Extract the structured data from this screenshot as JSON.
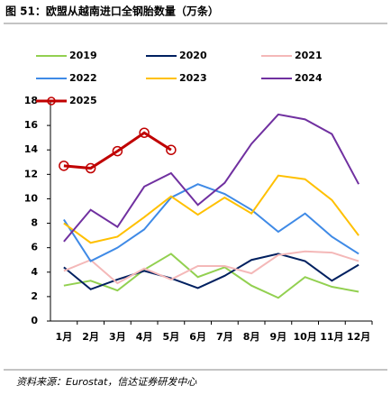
{
  "chart_data": {
    "type": "line",
    "title": "图 51：欧盟从越南进口全钢胎数量（万条）",
    "source": "资料来源：Eurostat，信达证券研发中心",
    "categories": [
      "1月",
      "2月",
      "3月",
      "4月",
      "5月",
      "6月",
      "7月",
      "8月",
      "9月",
      "10月",
      "11月",
      "12月"
    ],
    "ylim": [
      0,
      18
    ],
    "yticks": [
      0,
      2,
      4,
      6,
      8,
      10,
      12,
      14,
      16,
      18
    ],
    "legend": "top",
    "series": [
      {
        "name": "2019",
        "color": "#92d050",
        "values": [
          2.9,
          3.3,
          2.5,
          4.2,
          5.5,
          3.6,
          4.4,
          2.9,
          1.9,
          3.6,
          2.8,
          2.4
        ]
      },
      {
        "name": "2020",
        "color": "#002060",
        "values": [
          4.4,
          2.6,
          3.4,
          4.1,
          3.5,
          2.7,
          3.7,
          5.0,
          5.5,
          4.9,
          3.3,
          4.6
        ]
      },
      {
        "name": "2021",
        "color": "#f4b8b8",
        "values": [
          4.1,
          5.0,
          3.1,
          4.3,
          3.4,
          4.5,
          4.5,
          3.9,
          5.4,
          5.7,
          5.6,
          4.9
        ]
      },
      {
        "name": "2022",
        "color": "#3f8ae6",
        "values": [
          8.3,
          4.9,
          6.0,
          7.5,
          10.1,
          11.2,
          10.4,
          9.1,
          7.3,
          8.8,
          6.9,
          5.5
        ]
      },
      {
        "name": "2023",
        "color": "#ffc000",
        "values": [
          8.0,
          6.4,
          6.9,
          8.5,
          10.2,
          8.7,
          10.1,
          8.8,
          11.9,
          11.6,
          9.9,
          7.0
        ]
      },
      {
        "name": "2024",
        "color": "#7030a0",
        "values": [
          6.5,
          9.1,
          7.7,
          11.0,
          12.1,
          9.5,
          11.3,
          14.5,
          16.9,
          16.5,
          15.3,
          11.2
        ]
      },
      {
        "name": "2025",
        "color": "#c00000",
        "marker": "circle",
        "values": [
          12.7,
          12.5,
          13.9,
          15.4,
          14.0,
          null,
          null,
          null,
          null,
          null,
          null,
          null
        ]
      }
    ]
  }
}
